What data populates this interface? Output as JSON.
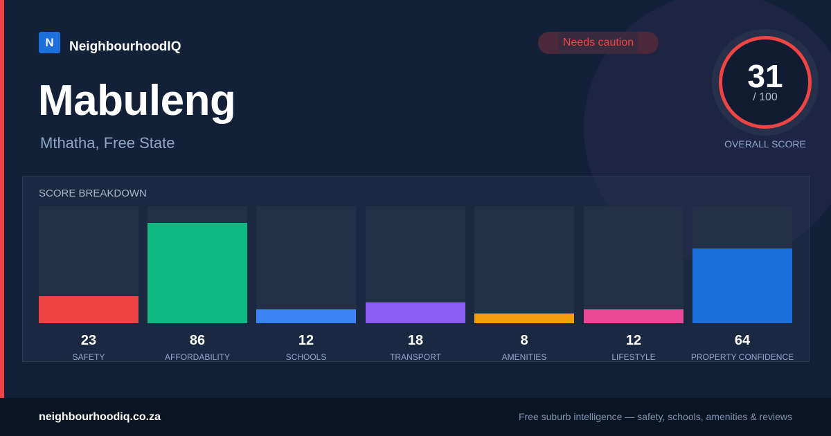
{
  "brand": {
    "logo_letter": "N",
    "name": "NeighbourhoodIQ"
  },
  "suburb": {
    "name": "Mabuleng",
    "location": "Mthatha, Free State"
  },
  "status_badge": {
    "label": "Needs caution",
    "color": "#ef4444"
  },
  "overall": {
    "score": "31",
    "max_label": "/ 100",
    "caption": "OVERALL SCORE",
    "ring_color": "#ef4444"
  },
  "breakdown": {
    "heading": "SCORE BREAKDOWN",
    "items": [
      {
        "label": "SAFETY",
        "value": "23",
        "color": "#ef4444"
      },
      {
        "label": "AFFORDABILITY",
        "value": "86",
        "color": "#10b981"
      },
      {
        "label": "SCHOOLS",
        "value": "12",
        "color": "#3b82f6"
      },
      {
        "label": "TRANSPORT",
        "value": "18",
        "color": "#8b5cf6"
      },
      {
        "label": "AMENITIES",
        "value": "8",
        "color": "#f59e0b"
      },
      {
        "label": "LIFESTYLE",
        "value": "12",
        "color": "#ec4899"
      },
      {
        "label": "PROPERTY CONFIDENCE",
        "value": "64",
        "color": "#1d6fdc"
      }
    ]
  },
  "footer": {
    "url": "neighbourhoodiq.co.za",
    "tagline": "Free suburb intelligence — safety, schools, amenities & reviews"
  }
}
